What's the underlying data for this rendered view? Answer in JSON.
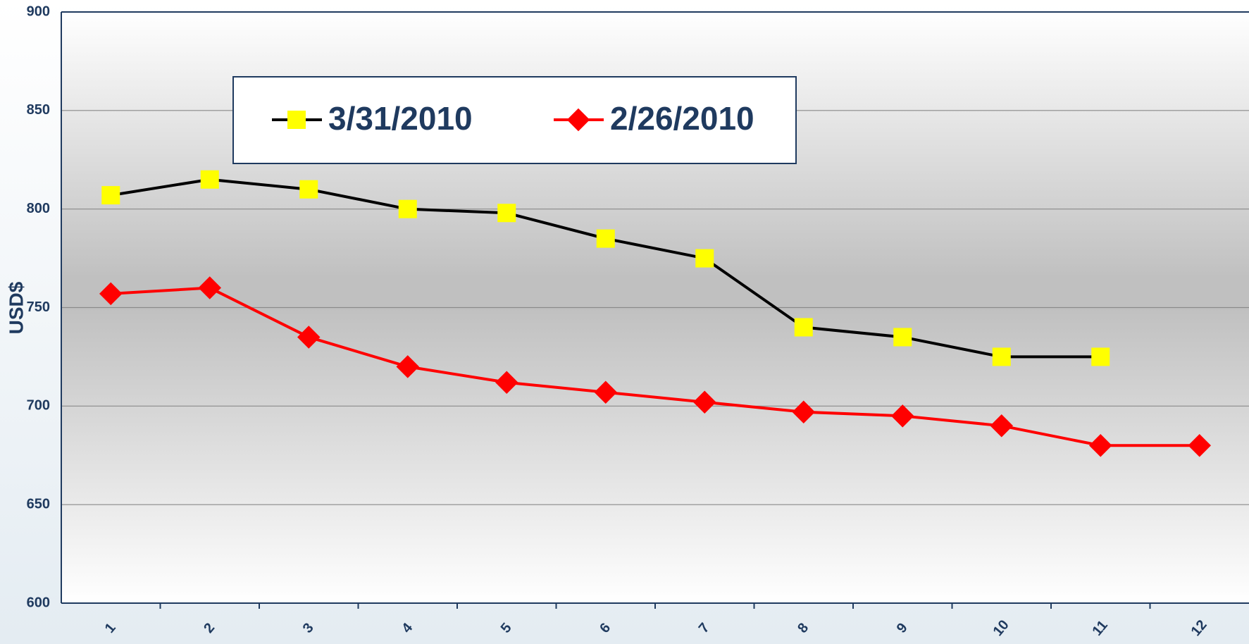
{
  "chart_data": {
    "type": "line",
    "y_label": "USD$",
    "categories": [
      "1",
      "2",
      "3",
      "4",
      "5",
      "6",
      "7",
      "8",
      "9",
      "10",
      "11",
      "12"
    ],
    "series": [
      {
        "name": "3/31/2010",
        "color": "#000000",
        "marker": "square",
        "marker_color": "#ffff00",
        "values": [
          807,
          815,
          810,
          800,
          798,
          785,
          775,
          740,
          735,
          725,
          725,
          null
        ]
      },
      {
        "name": "2/26/2010",
        "color": "#ff0000",
        "marker": "diamond",
        "marker_color": "#ff0000",
        "values": [
          757,
          760,
          735,
          720,
          712,
          707,
          702,
          697,
          695,
          690,
          680,
          680
        ]
      }
    ],
    "ylim": [
      600,
      900
    ],
    "yticks": [
      600,
      650,
      700,
      750,
      800,
      850,
      900
    ],
    "grid": true
  }
}
